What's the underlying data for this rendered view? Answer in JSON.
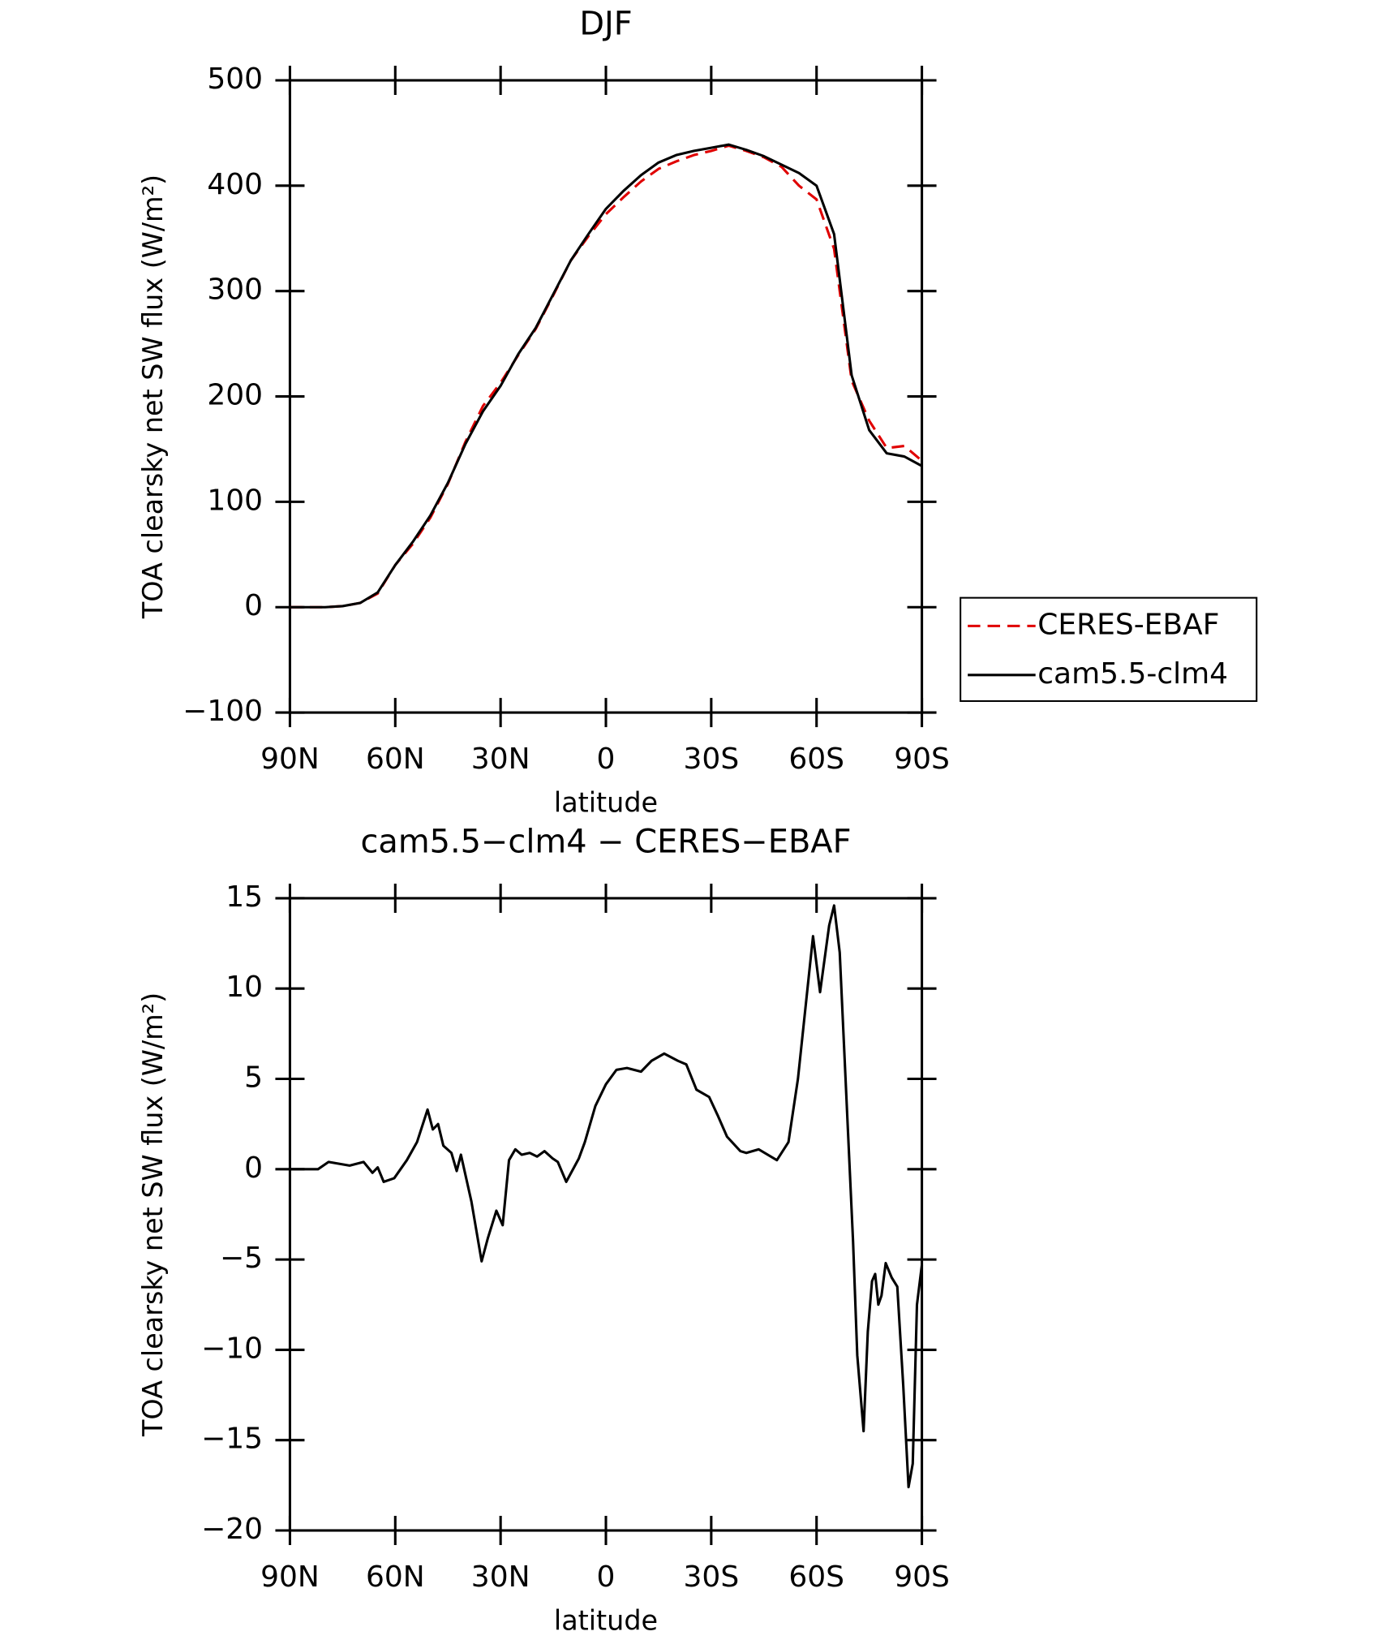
{
  "chart_data": [
    {
      "type": "line",
      "title": "DJF",
      "x_label": "latitude",
      "y_label": "TOA clearsky net SW flux (W/m²)",
      "x": [
        90,
        85,
        80,
        75,
        70,
        65,
        60,
        55,
        50,
        45,
        40,
        35,
        30,
        25,
        20,
        15,
        10,
        5,
        0,
        -5,
        -10,
        -15,
        -20,
        -25,
        -30,
        -35,
        -40,
        -45,
        -50,
        -55,
        -60,
        -65,
        -70,
        -75,
        -80,
        -85,
        -90
      ],
      "series": [
        {
          "name": "CERES-EBAF",
          "color": "#e00000",
          "linestyle": "dashed",
          "values": [
            0,
            0,
            0,
            1,
            4,
            13,
            40,
            60,
            85,
            117,
            157,
            191,
            213,
            239,
            264,
            296,
            329,
            352,
            373,
            389,
            404,
            416,
            423,
            429,
            433,
            438,
            433,
            427,
            418,
            400,
            387,
            340,
            215,
            177,
            151,
            153,
            139
          ]
        },
        {
          "name": "cam5.5-clm4",
          "color": "#000000",
          "linestyle": "solid",
          "values": [
            0,
            0,
            0,
            1,
            4,
            14,
            40,
            62,
            87,
            118,
            155,
            186,
            210,
            240,
            265,
            297,
            329,
            354,
            378,
            395,
            410,
            422,
            429,
            433,
            436,
            439,
            434,
            428,
            420,
            412,
            400,
            354,
            220,
            168,
            146,
            143,
            134
          ]
        }
      ],
      "xlim": [
        90,
        -90
      ],
      "xticks": [
        {
          "value": 90,
          "label": "90N"
        },
        {
          "value": 60,
          "label": "60N"
        },
        {
          "value": 30,
          "label": "30N"
        },
        0,
        {
          "value": -30,
          "label": "30S"
        },
        {
          "value": -60,
          "label": "60S"
        },
        {
          "value": -90,
          "label": "90S"
        }
      ],
      "ylim": [
        -100,
        500
      ],
      "yticks": [
        {
          "value": -100,
          "label": "−100"
        },
        0,
        100,
        200,
        300,
        400,
        500
      ],
      "legend": "right"
    },
    {
      "type": "line",
      "title": "cam5.5−clm4 − CERES−EBAF",
      "x_label": "latitude",
      "y_label": "TOA clearsky net SW flux (W/m²)",
      "x": [
        90,
        82,
        79,
        73,
        69,
        66.5,
        65,
        63.3,
        60.3,
        56.7,
        53.8,
        50.8,
        49.3,
        47.8,
        46.3,
        44,
        42.5,
        41.3,
        38.3,
        35.4,
        33.6,
        31.2,
        29.4,
        27.6,
        25.8,
        24,
        21.7,
        19.6,
        17.5,
        15.2,
        13.7,
        11.3,
        7.7,
        6,
        3,
        0,
        -3,
        -6,
        -10,
        -13,
        -16.6,
        -20.5,
        -22.9,
        -25.8,
        -29.4,
        -31.8,
        -34.5,
        -38.3,
        -40,
        -43.5,
        -48.7,
        -52,
        -54.7,
        -59,
        -61,
        -63.6,
        -65,
        -66.6,
        -70.4,
        -71.6,
        -73.4,
        -74.6,
        -75.8,
        -76.7,
        -77.6,
        -78.5,
        -79.7,
        -81.4,
        -83,
        -84.7,
        -86.2,
        -87.4,
        -88.6,
        -90
      ],
      "values": [
        0,
        0,
        0.4,
        0.2,
        0.4,
        -0.2,
        0.1,
        -0.7,
        -0.5,
        0.5,
        1.5,
        3.3,
        2.2,
        2.5,
        1.3,
        0.9,
        -0.1,
        0.8,
        -1.8,
        -5.1,
        -3.8,
        -2.3,
        -3.1,
        0.5,
        1.1,
        0.8,
        0.9,
        0.7,
        1.0,
        0.6,
        0.4,
        -0.7,
        0.6,
        1.5,
        3.5,
        4.7,
        5.5,
        5.6,
        5.4,
        6,
        6.4,
        6,
        5.8,
        4.4,
        4,
        3,
        1.8,
        1.0,
        0.9,
        1.1,
        0.5,
        1.5,
        5,
        12.9,
        9.8,
        13.5,
        14.6,
        12,
        -4,
        -10.3,
        -14.5,
        -9,
        -6.2,
        -5.8,
        -7.5,
        -7,
        -5.2,
        -6,
        -6.5,
        -12,
        -17.6,
        -16.3,
        -7.5,
        -5.3
      ],
      "color": "#000000",
      "xlim": [
        90,
        -90
      ],
      "xticks": [
        {
          "value": 90,
          "label": "90N"
        },
        {
          "value": 60,
          "label": "60N"
        },
        {
          "value": 30,
          "label": "30N"
        },
        0,
        {
          "value": -30,
          "label": "30S"
        },
        {
          "value": -60,
          "label": "60S"
        },
        {
          "value": -90,
          "label": "90S"
        }
      ],
      "ylim": [
        -20,
        15
      ],
      "yticks": [
        {
          "value": -20,
          "label": "−20"
        },
        {
          "value": -15,
          "label": "−15"
        },
        {
          "value": -10,
          "label": "−10"
        },
        {
          "value": -5,
          "label": "−5"
        },
        0,
        5,
        10,
        15
      ]
    }
  ]
}
